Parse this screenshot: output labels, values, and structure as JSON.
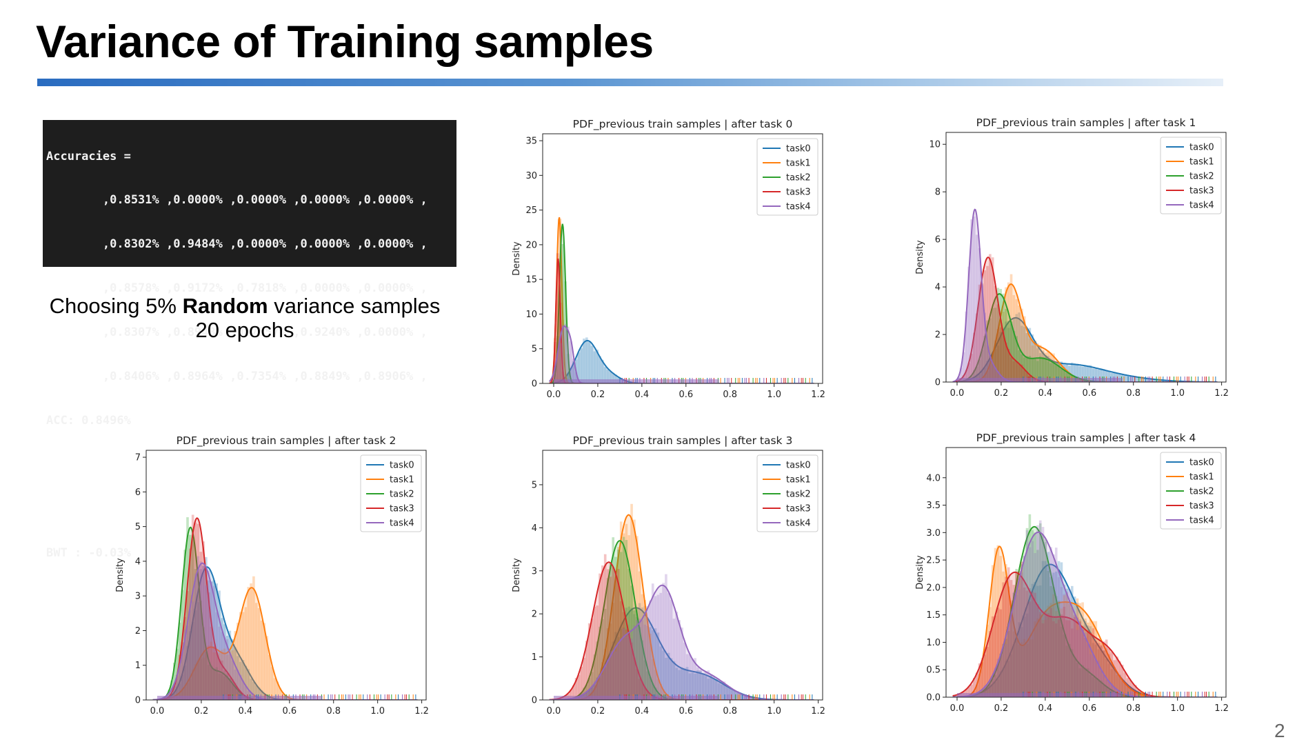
{
  "slide": {
    "title": "Variance of Training samples",
    "page_number": "2"
  },
  "terminal": {
    "lines": [
      "Accuracies =",
      "        ,0.8531% ,0.0000% ,0.0000% ,0.0000% ,0.0000% ,",
      "        ,0.8302% ,0.9484% ,0.0000% ,0.0000% ,0.0000% ,",
      "        ,0.8578% ,0.9172% ,0.7818% ,0.0000% ,0.0000% ,",
      "        ,0.8307% ,0.8948% ,0.7557% ,0.9240% ,0.0000% ,",
      "        ,0.8406% ,0.8964% ,0.7354% ,0.8849% ,0.8906% ,",
      "ACC: 0.8496%",
      "",
      "",
      "BWT : -0.03%"
    ]
  },
  "caption": {
    "prefix": "Choosing 5% ",
    "bold": "Random",
    "suffix": " variance samples",
    "line2": "20 epochs"
  },
  "colors": {
    "task0": "#1f77b4",
    "task1": "#ff7f0e",
    "task2": "#2ca02c",
    "task3": "#d62728",
    "task4": "#9467bd"
  },
  "chart_data": [
    {
      "type": "area",
      "title": "PDF_previous train samples | after task 0",
      "ylabel": "Density",
      "xlabel": "",
      "xlim": [
        -0.05,
        1.22
      ],
      "ylim": [
        0,
        36
      ],
      "xticks": [
        "0.0",
        "0.2",
        "0.4",
        "0.6",
        "0.8",
        "1.0",
        "1.2"
      ],
      "yticks": [
        "0",
        "5",
        "10",
        "15",
        "20",
        "25",
        "30",
        "35"
      ],
      "legend_position": "top-right",
      "series": [
        {
          "name": "task0",
          "components": [
            [
              0.15,
              0.05,
              6.0
            ],
            [
              0.25,
              0.05,
              1.2
            ]
          ]
        },
        {
          "name": "task1",
          "components": [
            [
              0.025,
              0.012,
              24.0
            ]
          ]
        },
        {
          "name": "task2",
          "components": [
            [
              0.04,
              0.014,
              23.0
            ]
          ]
        },
        {
          "name": "task3",
          "components": [
            [
              0.02,
              0.01,
              18.0
            ]
          ]
        },
        {
          "name": "task4",
          "components": [
            [
              0.045,
              0.025,
              8.0
            ],
            [
              0.08,
              0.015,
              3.0
            ]
          ]
        }
      ]
    },
    {
      "type": "area",
      "title": "PDF_previous train samples | after task 1",
      "ylabel": "Density",
      "xlabel": "",
      "xlim": [
        -0.05,
        1.22
      ],
      "ylim": [
        0,
        10.5
      ],
      "xticks": [
        "0.0",
        "0.2",
        "0.4",
        "0.6",
        "0.8",
        "1.0",
        "1.2"
      ],
      "yticks": [
        "0",
        "2",
        "4",
        "6",
        "8",
        "10"
      ],
      "legend_position": "top-right",
      "series": [
        {
          "name": "task0",
          "components": [
            [
              0.26,
              0.08,
              2.5
            ],
            [
              0.5,
              0.15,
              0.7
            ],
            [
              0.75,
              0.15,
              0.15
            ]
          ]
        },
        {
          "name": "task1",
          "components": [
            [
              0.24,
              0.05,
              3.8
            ],
            [
              0.38,
              0.08,
              1.4
            ]
          ]
        },
        {
          "name": "task2",
          "components": [
            [
              0.19,
              0.055,
              3.6
            ],
            [
              0.38,
              0.09,
              1.0
            ]
          ]
        },
        {
          "name": "task3",
          "components": [
            [
              0.14,
              0.045,
              5.2
            ],
            [
              0.26,
              0.05,
              0.8
            ]
          ]
        },
        {
          "name": "task4",
          "components": [
            [
              0.08,
              0.028,
              7.0
            ],
            [
              0.14,
              0.04,
              0.8
            ]
          ]
        }
      ]
    },
    {
      "type": "area",
      "title": "PDF_previous train samples | after task 2",
      "ylabel": "Density",
      "xlabel": "",
      "xlim": [
        -0.05,
        1.22
      ],
      "ylim": [
        0,
        7.2
      ],
      "xticks": [
        "0.0",
        "0.2",
        "0.4",
        "0.6",
        "0.8",
        "1.0",
        "1.2"
      ],
      "yticks": [
        "0",
        "1",
        "2",
        "3",
        "4",
        "5",
        "6",
        "7"
      ],
      "legend_position": "top-right",
      "series": [
        {
          "name": "task0",
          "components": [
            [
              0.22,
              0.06,
              3.6
            ],
            [
              0.35,
              0.07,
              1.2
            ]
          ]
        },
        {
          "name": "task1",
          "components": [
            [
              0.24,
              0.07,
              1.5
            ],
            [
              0.43,
              0.06,
              3.2
            ]
          ]
        },
        {
          "name": "task2",
          "components": [
            [
              0.15,
              0.04,
              4.9
            ],
            [
              0.28,
              0.06,
              0.8
            ]
          ]
        },
        {
          "name": "task3",
          "components": [
            [
              0.18,
              0.045,
              5.2
            ],
            [
              0.3,
              0.05,
              0.8
            ]
          ]
        },
        {
          "name": "task4",
          "components": [
            [
              0.2,
              0.06,
              3.8
            ],
            [
              0.32,
              0.06,
              1.0
            ]
          ]
        }
      ]
    },
    {
      "type": "area",
      "title": "PDF_previous train samples | after task 3",
      "ylabel": "Density",
      "xlabel": "",
      "xlim": [
        -0.05,
        1.22
      ],
      "ylim": [
        0,
        5.8
      ],
      "xticks": [
        "0.0",
        "0.2",
        "0.4",
        "0.6",
        "0.8",
        "1.0",
        "1.2"
      ],
      "yticks": [
        "0",
        "1",
        "2",
        "3",
        "4",
        "5"
      ],
      "legend_position": "top-right",
      "series": [
        {
          "name": "task0",
          "components": [
            [
              0.37,
              0.1,
              2.1
            ],
            [
              0.65,
              0.12,
              0.6
            ]
          ]
        },
        {
          "name": "task1",
          "components": [
            [
              0.34,
              0.065,
              4.3
            ]
          ]
        },
        {
          "name": "task2",
          "components": [
            [
              0.3,
              0.07,
              3.7
            ]
          ]
        },
        {
          "name": "task3",
          "components": [
            [
              0.25,
              0.075,
              3.2
            ]
          ]
        },
        {
          "name": "task4",
          "components": [
            [
              0.33,
              0.09,
              1.4
            ],
            [
              0.5,
              0.07,
              2.3
            ],
            [
              0.68,
              0.1,
              0.6
            ]
          ]
        }
      ]
    },
    {
      "type": "area",
      "title": "PDF_previous train samples | after task 4",
      "ylabel": "Density",
      "xlabel": "",
      "xlim": [
        -0.05,
        1.22
      ],
      "ylim": [
        0,
        4.55
      ],
      "xticks": [
        "0.0",
        "0.2",
        "0.4",
        "0.6",
        "0.8",
        "1.0",
        "1.2"
      ],
      "yticks": [
        "0.0",
        "0.5",
        "1.0",
        "1.5",
        "2.0",
        "2.5",
        "3.0",
        "3.5",
        "4.0"
      ],
      "legend_position": "top-right",
      "series": [
        {
          "name": "task0",
          "components": [
            [
              0.42,
              0.12,
              2.4
            ],
            [
              0.65,
              0.09,
              0.5
            ]
          ]
        },
        {
          "name": "task1",
          "components": [
            [
              0.19,
              0.045,
              2.6
            ],
            [
              0.4,
              0.1,
              1.3
            ],
            [
              0.58,
              0.1,
              1.3
            ]
          ]
        },
        {
          "name": "task2",
          "components": [
            [
              0.35,
              0.09,
              3.1
            ],
            [
              0.58,
              0.08,
              0.4
            ]
          ]
        },
        {
          "name": "task3",
          "components": [
            [
              0.25,
              0.09,
              2.1
            ],
            [
              0.5,
              0.12,
              1.4
            ],
            [
              0.7,
              0.07,
              0.5
            ]
          ]
        },
        {
          "name": "task4",
          "components": [
            [
              0.36,
              0.1,
              2.9
            ],
            [
              0.55,
              0.09,
              0.9
            ]
          ]
        }
      ]
    }
  ]
}
